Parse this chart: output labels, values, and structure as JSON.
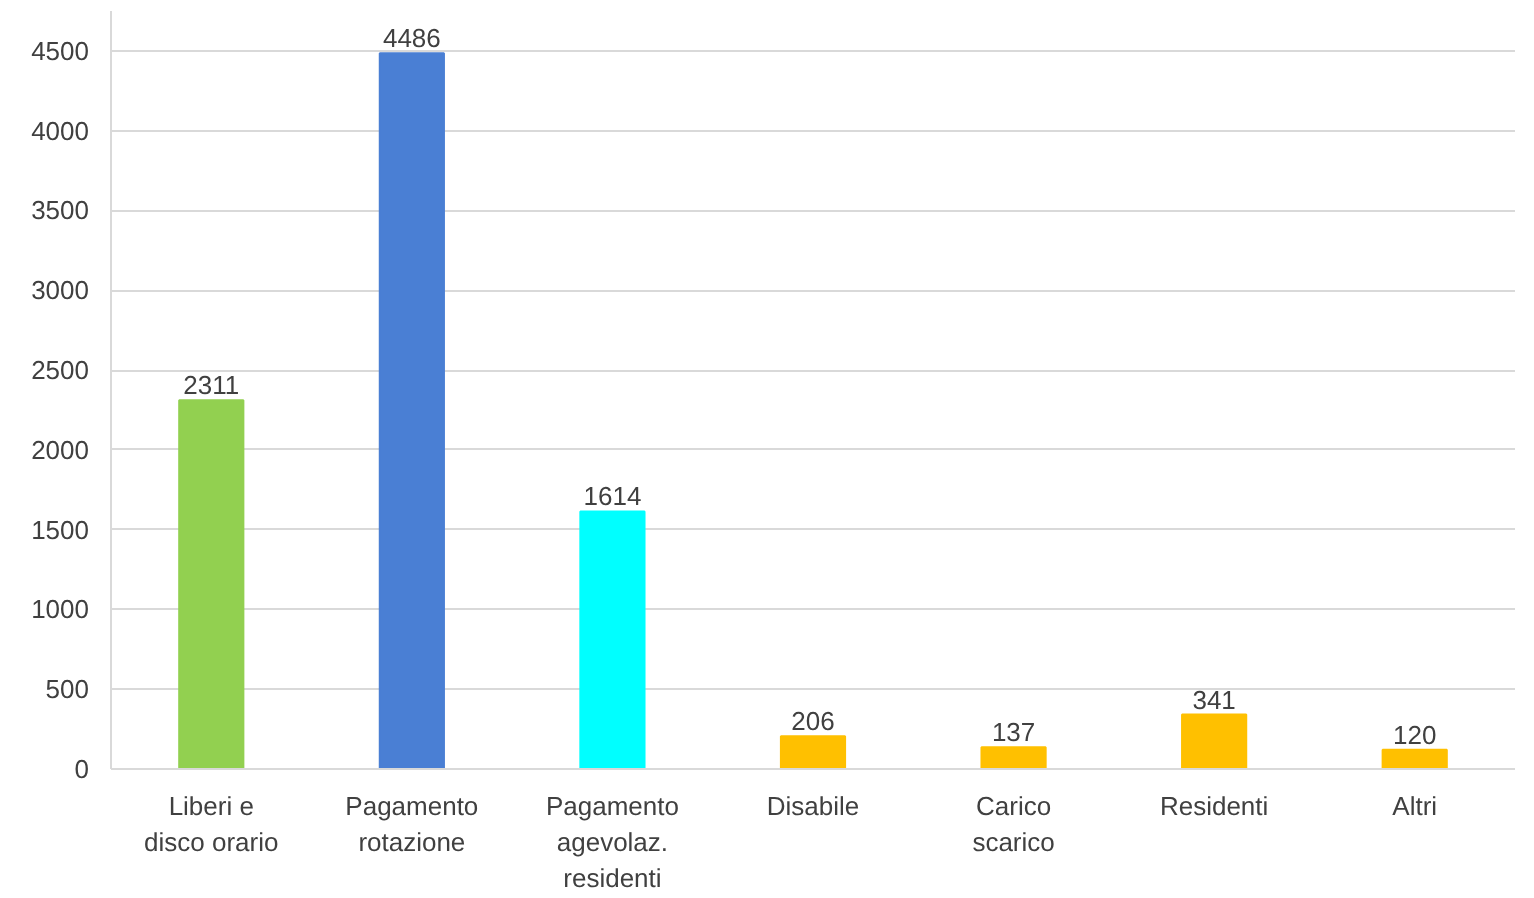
{
  "chart_data": {
    "type": "bar",
    "categories": [
      "Liberi e\ndisco orario",
      "Pagamento\nrotazione",
      "Pagamento\nagevolaz.\nresidenti",
      "Disabile",
      "Carico\nscarico",
      "Residenti",
      "Altri"
    ],
    "values": [
      2311,
      4486,
      1614,
      206,
      137,
      341,
      120
    ],
    "colors": [
      "#92d050",
      "#4a7fd4",
      "#00ffff",
      "#ffc000",
      "#ffc000",
      "#ffc000",
      "#ffc000"
    ],
    "ylim": [
      0,
      4750
    ],
    "yticks": [
      0,
      500,
      1000,
      1500,
      2000,
      2500,
      3000,
      3500,
      4000,
      4500
    ],
    "grid": "y",
    "data_labels": true
  }
}
